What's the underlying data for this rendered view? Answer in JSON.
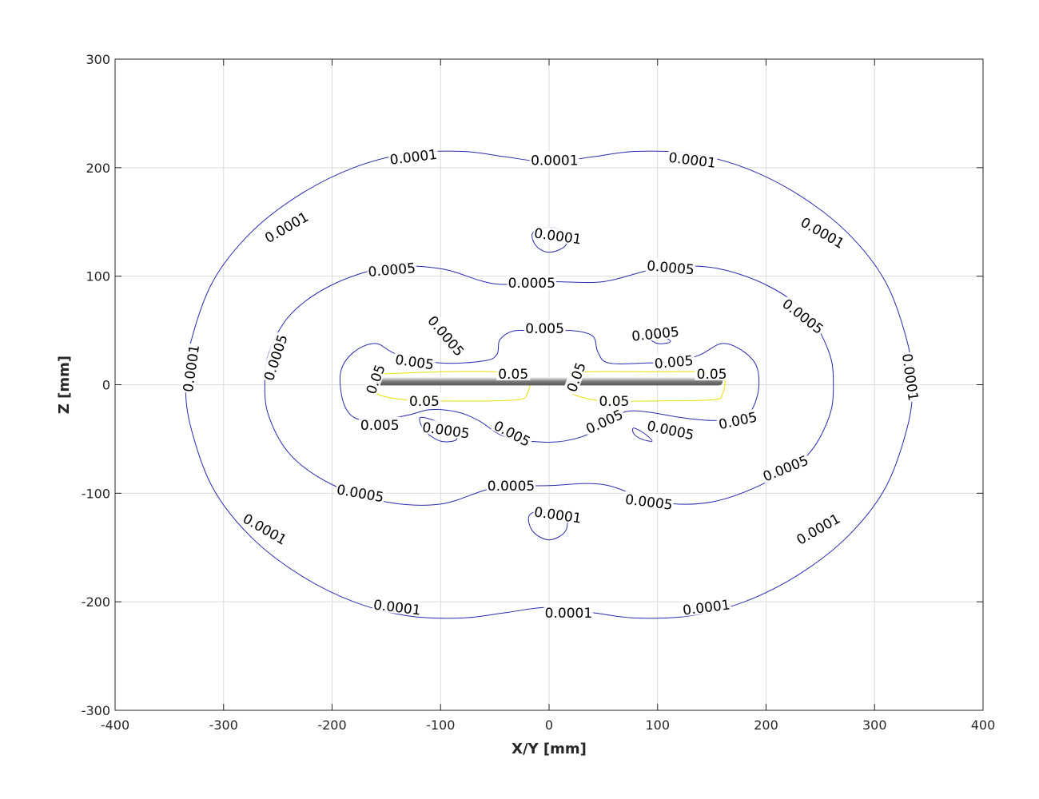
{
  "chart_data": {
    "type": "contour",
    "title": "",
    "xlabel": "X/Y [mm]",
    "ylabel": "Z [mm]",
    "xlim": [
      -400,
      400
    ],
    "ylim": [
      -300,
      300
    ],
    "x_ticks": [
      -400,
      -300,
      -200,
      -100,
      0,
      100,
      200,
      300,
      400
    ],
    "y_ticks": [
      -300,
      -200,
      -100,
      0,
      100,
      200,
      300
    ],
    "x_tick_labels": [
      "-400",
      "-300",
      "-200",
      "-100",
      "0",
      "100",
      "200",
      "300",
      "400"
    ],
    "y_tick_labels": [
      "-300",
      "-200",
      "-100",
      "0",
      "100",
      "200",
      "300"
    ],
    "grid": true,
    "colors": {
      "contour_low": "#2a2ab0",
      "contour_high": "#e8e000",
      "antenna": "#7a7a7a",
      "grid": "#dcdcdc"
    },
    "antenna": {
      "x_range": [
        -160,
        160
      ],
      "z": 3
    },
    "contour_levels": [
      {
        "level": "0.0001",
        "color": "#2a2ab0",
        "paths": [
          [
            [
              0,
              205
            ],
            [
              -40,
              210
            ],
            [
              -80,
              215
            ],
            [
              -130,
              213
            ],
            [
              -180,
              200
            ],
            [
              -230,
              175
            ],
            [
              -275,
              140
            ],
            [
              -310,
              95
            ],
            [
              -330,
              40
            ],
            [
              -335,
              0
            ],
            [
              -330,
              -40
            ],
            [
              -310,
              -95
            ],
            [
              -275,
              -140
            ],
            [
              -230,
              -175
            ],
            [
              -180,
              -200
            ],
            [
              -130,
              -213
            ],
            [
              -80,
              -215
            ],
            [
              -40,
              -210
            ],
            [
              0,
              -205
            ],
            [
              40,
              -210
            ],
            [
              80,
              -215
            ],
            [
              130,
              -213
            ],
            [
              180,
              -200
            ],
            [
              230,
              -175
            ],
            [
              275,
              -140
            ],
            [
              310,
              -95
            ],
            [
              330,
              -40
            ],
            [
              335,
              0
            ],
            [
              330,
              40
            ],
            [
              310,
              95
            ],
            [
              275,
              140
            ],
            [
              230,
              175
            ],
            [
              180,
              200
            ],
            [
              130,
              213
            ],
            [
              80,
              215
            ],
            [
              40,
              210
            ],
            [
              0,
              205
            ]
          ],
          [
            [
              -15,
              140
            ],
            [
              -12,
              128
            ],
            [
              0,
              122
            ],
            [
              15,
              128
            ],
            [
              15,
              140
            ],
            [
              0,
              145
            ],
            [
              -15,
              140
            ]
          ],
          [
            [
              -18,
              -120
            ],
            [
              -15,
              -135
            ],
            [
              0,
              -143
            ],
            [
              15,
              -135
            ],
            [
              15,
              -120
            ],
            [
              0,
              -115
            ],
            [
              -18,
              -120
            ]
          ]
        ],
        "labels": [
          {
            "text": "0.0001",
            "x": -125,
            "y": 210,
            "angle": -7
          },
          {
            "text": "0.0001",
            "x": 5,
            "y": 207,
            "angle": 0
          },
          {
            "text": "0.0001",
            "x": 132,
            "y": 207,
            "angle": 7
          },
          {
            "text": "0.0001",
            "x": -242,
            "y": 145,
            "angle": -30
          },
          {
            "text": "0.0001",
            "x": 252,
            "y": 140,
            "angle": 30
          },
          {
            "text": "0.0001",
            "x": 8,
            "y": 137,
            "angle": 8
          },
          {
            "text": "0.0001",
            "x": -330,
            "y": 15,
            "angle": -82
          },
          {
            "text": "0.0001",
            "x": 333,
            "y": 7,
            "angle": 82
          },
          {
            "text": "0.0001",
            "x": 8,
            "y": -120,
            "angle": 8
          },
          {
            "text": "0.0001",
            "x": -262,
            "y": -133,
            "angle": 30
          },
          {
            "text": "0.0001",
            "x": 248,
            "y": -133,
            "angle": -30
          },
          {
            "text": "0.0001",
            "x": -140,
            "y": -205,
            "angle": 7
          },
          {
            "text": "0.0001",
            "x": 18,
            "y": -210,
            "angle": 0
          },
          {
            "text": "0.0001",
            "x": 145,
            "y": -205,
            "angle": -7
          }
        ]
      },
      {
        "level": "0.0005",
        "color": "#2a2ab0",
        "paths": [
          [
            [
              0,
              95
            ],
            [
              -50,
              93
            ],
            [
              -100,
              107
            ],
            [
              -150,
              108
            ],
            [
              -200,
              92
            ],
            [
              -238,
              65
            ],
            [
              -258,
              30
            ],
            [
              -262,
              0
            ],
            [
              -258,
              -30
            ],
            [
              -238,
              -65
            ],
            [
              -200,
              -92
            ],
            [
              -150,
              -108
            ],
            [
              -100,
              -110
            ],
            [
              -50,
              -95
            ],
            [
              0,
              -93
            ],
            [
              50,
              -92
            ],
            [
              100,
              -108
            ],
            [
              150,
              -108
            ],
            [
              200,
              -90
            ],
            [
              238,
              -65
            ],
            [
              258,
              -30
            ],
            [
              262,
              0
            ],
            [
              258,
              30
            ],
            [
              238,
              65
            ],
            [
              200,
              92
            ],
            [
              150,
              108
            ],
            [
              100,
              107
            ],
            [
              50,
              95
            ],
            [
              0,
              95
            ]
          ],
          [
            [
              -105,
              60
            ],
            [
              -95,
              48
            ],
            [
              -85,
              40
            ],
            [
              -100,
              45
            ],
            [
              -108,
              55
            ],
            [
              -105,
              60
            ]
          ],
          [
            [
              90,
              45
            ],
            [
              100,
              38
            ],
            [
              112,
              40
            ],
            [
              100,
              46
            ],
            [
              90,
              45
            ]
          ],
          [
            [
              -118,
              -30
            ],
            [
              -95,
              -38
            ],
            [
              -85,
              -50
            ],
            [
              -100,
              -52
            ],
            [
              -115,
              -42
            ],
            [
              -118,
              -30
            ]
          ],
          [
            [
              78,
              -40
            ],
            [
              88,
              -45
            ],
            [
              95,
              -52
            ],
            [
              85,
              -50
            ],
            [
              78,
              -45
            ],
            [
              78,
              -40
            ]
          ]
        ],
        "labels": [
          {
            "text": "0.0005",
            "x": -145,
            "y": 106,
            "angle": -5
          },
          {
            "text": "0.0005",
            "x": -16,
            "y": 94,
            "angle": 0
          },
          {
            "text": "0.0005",
            "x": 112,
            "y": 108,
            "angle": 5
          },
          {
            "text": "0.0005",
            "x": 234,
            "y": 63,
            "angle": 38
          },
          {
            "text": "0.0005",
            "x": -252,
            "y": 25,
            "angle": -72
          },
          {
            "text": "0.0005",
            "x": -95,
            "y": 45,
            "angle": 50
          },
          {
            "text": "0.0005",
            "x": 98,
            "y": 47,
            "angle": -6
          },
          {
            "text": "0.0005",
            "x": -95,
            "y": -42,
            "angle": 8
          },
          {
            "text": "0.0005",
            "x": 112,
            "y": -42,
            "angle": 12
          },
          {
            "text": "0.0005",
            "x": -174,
            "y": -100,
            "angle": 10
          },
          {
            "text": "0.0005",
            "x": -35,
            "y": -93,
            "angle": 0
          },
          {
            "text": "0.0005",
            "x": 92,
            "y": -108,
            "angle": 7
          },
          {
            "text": "0.0005",
            "x": 218,
            "y": -77,
            "angle": -22
          }
        ]
      },
      {
        "level": "0.005",
        "color": "#2a2ab0",
        "paths": [
          [
            [
              0,
              48
            ],
            [
              -30,
              50
            ],
            [
              -45,
              42
            ],
            [
              -48,
              28
            ],
            [
              -60,
              22
            ],
            [
              -100,
              20
            ],
            [
              -140,
              28
            ],
            [
              -160,
              38
            ],
            [
              -180,
              30
            ],
            [
              -192,
              12
            ],
            [
              -190,
              -15
            ],
            [
              -180,
              -30
            ],
            [
              -160,
              -33
            ],
            [
              -130,
              -28
            ],
            [
              -110,
              -23
            ],
            [
              -85,
              -25
            ],
            [
              -65,
              -33
            ],
            [
              -40,
              -48
            ],
            [
              0,
              -53
            ],
            [
              30,
              -48
            ],
            [
              55,
              -35
            ],
            [
              70,
              -25
            ],
            [
              90,
              -25
            ],
            [
              120,
              -30
            ],
            [
              150,
              -33
            ],
            [
              180,
              -30
            ],
            [
              192,
              -10
            ],
            [
              192,
              15
            ],
            [
              180,
              30
            ],
            [
              160,
              38
            ],
            [
              140,
              28
            ],
            [
              120,
              22
            ],
            [
              90,
              20
            ],
            [
              55,
              20
            ],
            [
              45,
              30
            ],
            [
              40,
              45
            ],
            [
              20,
              50
            ],
            [
              0,
              48
            ]
          ]
        ],
        "labels": [
          {
            "text": "0.005",
            "x": -124,
            "y": 21,
            "angle": 8
          },
          {
            "text": "0.005",
            "x": -4,
            "y": 52,
            "angle": 0
          },
          {
            "text": "0.005",
            "x": 115,
            "y": 21,
            "angle": -5
          },
          {
            "text": "0.005",
            "x": -156,
            "y": -37,
            "angle": 0
          },
          {
            "text": "0.005",
            "x": -34,
            "y": -45,
            "angle": 28
          },
          {
            "text": "0.005",
            "x": 51,
            "y": -34,
            "angle": -25
          },
          {
            "text": "0.005",
            "x": 174,
            "y": -33,
            "angle": -12
          }
        ]
      },
      {
        "level": "0.05",
        "color": "#e8e000",
        "paths": [
          [
            [
              -160,
              12
            ],
            [
              -155,
              10
            ],
            [
              -100,
              12
            ],
            [
              -50,
              12
            ],
            [
              -20,
              8
            ],
            [
              -20,
              -8
            ],
            [
              -30,
              -14
            ],
            [
              -80,
              -15
            ],
            [
              -130,
              -14
            ],
            [
              -155,
              -10
            ],
            [
              -160,
              -5
            ]
          ],
          [
            [
              20,
              8
            ],
            [
              35,
              12
            ],
            [
              100,
              12
            ],
            [
              155,
              12
            ],
            [
              162,
              8
            ],
            [
              160,
              -8
            ],
            [
              150,
              -14
            ],
            [
              90,
              -15
            ],
            [
              50,
              -15
            ],
            [
              25,
              -10
            ],
            [
              20,
              -5
            ]
          ]
        ],
        "labels": [
          {
            "text": "0.05",
            "x": -160,
            "y": 5,
            "angle": -70
          },
          {
            "text": "0.05",
            "x": -33,
            "y": 10,
            "angle": 0
          },
          {
            "text": "0.05",
            "x": 25,
            "y": 7,
            "angle": -70
          },
          {
            "text": "0.05",
            "x": 150,
            "y": 10,
            "angle": 0
          },
          {
            "text": "0.05",
            "x": -115,
            "y": -15,
            "angle": 0
          },
          {
            "text": "0.05",
            "x": 60,
            "y": -15,
            "angle": 0
          }
        ]
      }
    ]
  }
}
